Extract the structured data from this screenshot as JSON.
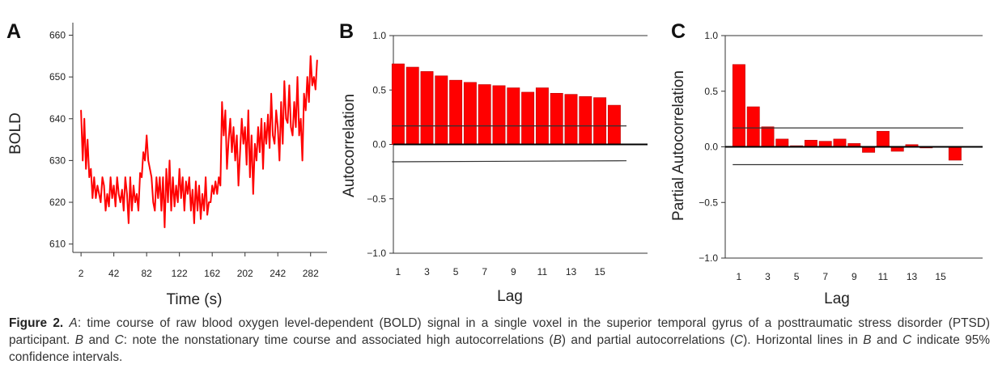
{
  "colors": {
    "series": "#ff0000",
    "axis": "#333333",
    "bar_stroke": "#bb0000"
  },
  "chart_data": [
    {
      "panel": "A",
      "type": "line",
      "xlabel": "Time (s)",
      "ylabel": "BOLD",
      "xlim": [
        -8,
        302
      ],
      "ylim": [
        608,
        663
      ],
      "xticks": [
        2,
        42,
        82,
        122,
        162,
        202,
        242,
        282
      ],
      "yticks": [
        610,
        620,
        630,
        640,
        650,
        660
      ],
      "grid": false,
      "x": [
        2,
        4,
        6,
        8,
        10,
        12,
        14,
        16,
        18,
        20,
        22,
        24,
        26,
        28,
        30,
        32,
        34,
        36,
        38,
        40,
        42,
        44,
        46,
        48,
        50,
        52,
        54,
        56,
        58,
        60,
        62,
        64,
        66,
        68,
        70,
        72,
        74,
        76,
        78,
        80,
        82,
        84,
        86,
        88,
        90,
        92,
        94,
        96,
        98,
        100,
        102,
        104,
        106,
        108,
        110,
        112,
        114,
        116,
        118,
        120,
        122,
        124,
        126,
        128,
        130,
        132,
        134,
        136,
        138,
        140,
        142,
        144,
        146,
        148,
        150,
        152,
        154,
        156,
        158,
        160,
        162,
        164,
        166,
        168,
        170,
        172,
        174,
        176,
        178,
        180,
        182,
        184,
        186,
        188,
        190,
        192,
        194,
        196,
        198,
        200,
        202,
        204,
        206,
        208,
        210,
        212,
        214,
        216,
        218,
        220,
        222,
        224,
        226,
        228,
        230,
        232,
        234,
        236,
        238,
        240,
        242,
        244,
        246,
        248,
        250,
        252,
        254,
        256,
        258,
        260,
        262,
        264,
        266,
        268,
        270,
        272,
        274,
        276,
        278,
        280,
        282,
        284,
        286,
        288,
        290
      ],
      "y": [
        642,
        630,
        640,
        628,
        635,
        626,
        628,
        621,
        626,
        621,
        624,
        622,
        620,
        626,
        624,
        618,
        622,
        619,
        626,
        621,
        624,
        619,
        626,
        622,
        620,
        623,
        618,
        626,
        622,
        615,
        626,
        618,
        624,
        620,
        622,
        618,
        627,
        626,
        632,
        630,
        636,
        630,
        628,
        626,
        620,
        618,
        626,
        621,
        626,
        618,
        626,
        614,
        628,
        620,
        630,
        618,
        626,
        619,
        624,
        620,
        628,
        621,
        626,
        618,
        625,
        622,
        626,
        618,
        623,
        615,
        625,
        618,
        624,
        616,
        622,
        618,
        626,
        617,
        620,
        620,
        624,
        622,
        625,
        622,
        626,
        624,
        644,
        636,
        642,
        628,
        635,
        640,
        632,
        638,
        630,
        636,
        624,
        632,
        640,
        634,
        638,
        629,
        642,
        626,
        636,
        622,
        634,
        630,
        638,
        632,
        640,
        628,
        639,
        634,
        641,
        633,
        646,
        636,
        634,
        642,
        638,
        630,
        644,
        634,
        649,
        640,
        639,
        648,
        638,
        636,
        644,
        638,
        650,
        636,
        640,
        630,
        646,
        642,
        650,
        644,
        655,
        648,
        650,
        647,
        654
      ]
    },
    {
      "panel": "B",
      "type": "bar",
      "xlabel": "Lag",
      "ylabel": "Autocorrelation",
      "ylim": [
        -1.0,
        1.0
      ],
      "yticks": [
        1.0,
        0.5,
        0.0,
        -0.5,
        -1.0
      ],
      "ytick_labels": [
        "1.0",
        "0.5",
        "0.0",
        "−0.5",
        "−1.0"
      ],
      "xtick_labels": [
        1,
        3,
        5,
        7,
        9,
        11,
        13,
        15
      ],
      "categories": [
        1,
        2,
        3,
        4,
        5,
        6,
        7,
        8,
        9,
        10,
        11,
        12,
        13,
        14,
        15,
        16
      ],
      "values": [
        0.74,
        0.71,
        0.67,
        0.63,
        0.59,
        0.57,
        0.55,
        0.54,
        0.52,
        0.48,
        0.52,
        0.47,
        0.46,
        0.44,
        0.43,
        0.36
      ],
      "confidence_upper": [
        0.17,
        0.17
      ],
      "confidence_lower": [
        -0.16,
        -0.15
      ],
      "grid": false
    },
    {
      "panel": "C",
      "type": "bar",
      "xlabel": "Lag",
      "ylabel": "Partial Autocorrelation",
      "ylim": [
        -1.0,
        1.0
      ],
      "yticks": [
        1.0,
        0.5,
        0.0,
        -0.5,
        -1.0
      ],
      "ytick_labels": [
        "1.0",
        "0.5",
        "0.0",
        "−0.5",
        "−1.0"
      ],
      "xtick_labels": [
        1,
        3,
        5,
        7,
        9,
        11,
        13,
        15
      ],
      "categories": [
        1,
        2,
        3,
        4,
        5,
        6,
        7,
        8,
        9,
        10,
        11,
        12,
        13,
        14,
        15,
        16
      ],
      "values": [
        0.74,
        0.36,
        0.18,
        0.07,
        0.01,
        0.06,
        0.05,
        0.07,
        0.03,
        -0.05,
        0.14,
        -0.04,
        0.02,
        -0.01,
        0.0,
        -0.12
      ],
      "confidence_upper": [
        0.17,
        0.17
      ],
      "confidence_lower": [
        -0.16,
        -0.16
      ],
      "grid": false
    }
  ],
  "caption": {
    "lead": "Figure 2.",
    "parts": [
      {
        "t": " "
      },
      {
        "t": "A",
        "i": true
      },
      {
        "t": ": time course of raw blood oxygen level-dependent (BOLD) signal in a single voxel in the superior temporal gyrus of a posttraumatic stress disorder (PTSD) participant. "
      },
      {
        "t": "B",
        "i": true
      },
      {
        "t": " and "
      },
      {
        "t": "C",
        "i": true
      },
      {
        "t": ": note the nonstationary time course and associated high autocorrelations ("
      },
      {
        "t": "B",
        "i": true
      },
      {
        "t": ") and partial autocorrelations ("
      },
      {
        "t": "C",
        "i": true
      },
      {
        "t": "). Horizontal lines in "
      },
      {
        "t": "B",
        "i": true
      },
      {
        "t": " and "
      },
      {
        "t": "C",
        "i": true
      },
      {
        "t": " indicate 95% confidence intervals."
      }
    ]
  }
}
